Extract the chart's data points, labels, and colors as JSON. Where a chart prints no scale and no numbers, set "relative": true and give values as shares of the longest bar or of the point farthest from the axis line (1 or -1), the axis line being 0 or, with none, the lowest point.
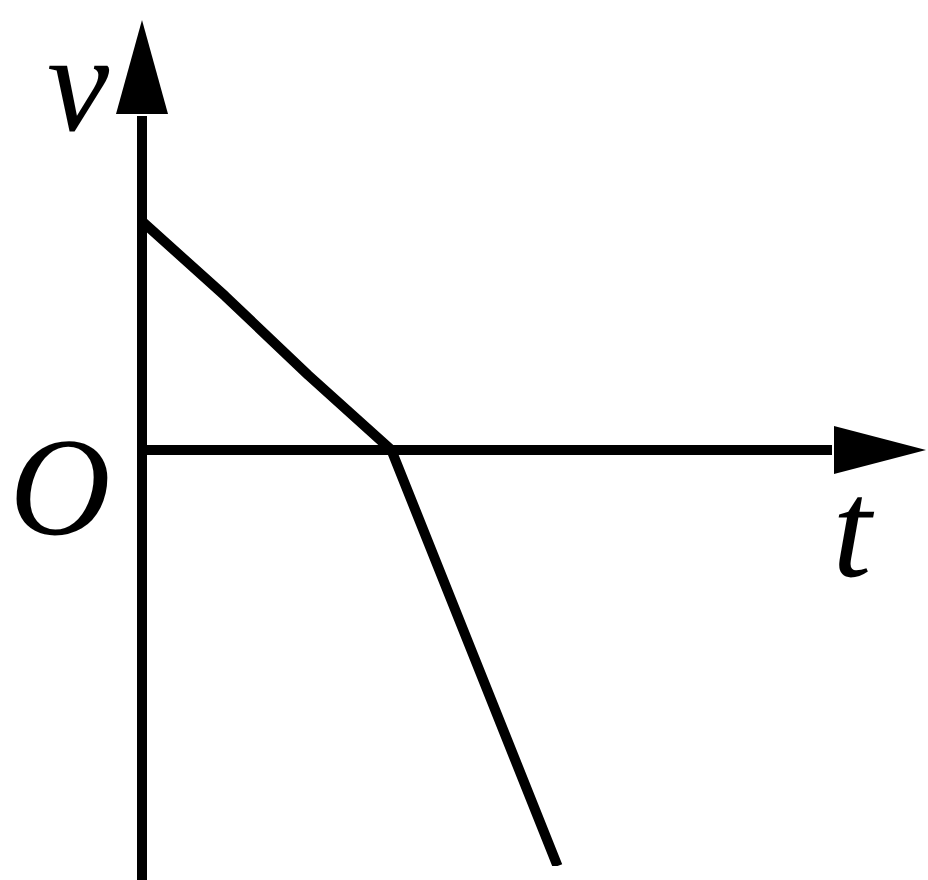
{
  "chart_data": {
    "type": "line",
    "xlabel": "t",
    "ylabel": "v",
    "annotations": [
      "O"
    ],
    "relative": true,
    "categories": [
      null,
      null,
      null,
      null,
      null,
      null,
      null,
      null,
      null,
      null
    ],
    "values": [
      0.55,
      0.37,
      0.18,
      0,
      -0.5,
      -1,
      null,
      null,
      null,
      null
    ],
    "color": "#000000",
    "marker": "none",
    "line_style": "solid"
  }
}
